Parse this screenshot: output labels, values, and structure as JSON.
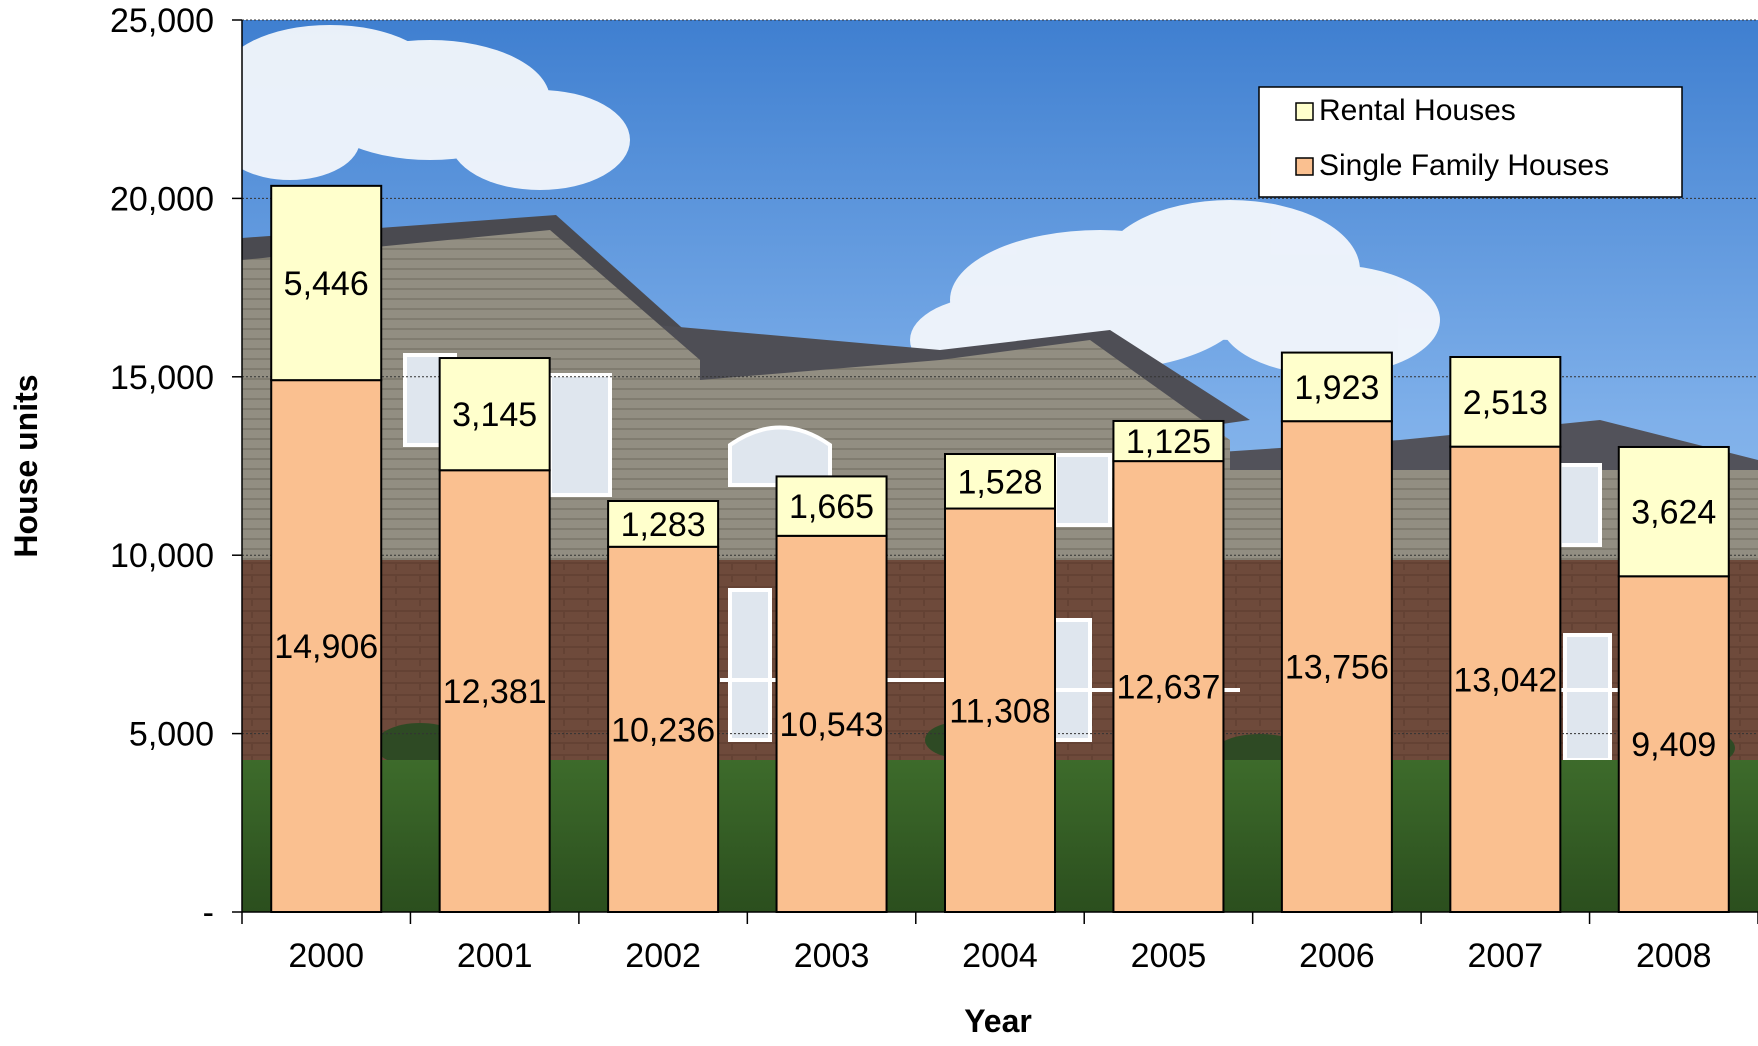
{
  "chart_data": {
    "type": "bar",
    "stacked": true,
    "categories": [
      "2000",
      "2001",
      "2002",
      "2003",
      "2004",
      "2005",
      "2006",
      "2007",
      "2008"
    ],
    "series": [
      {
        "name": "Single Family Houses",
        "values": [
          14906,
          12381,
          10236,
          10543,
          11308,
          12637,
          13756,
          13042,
          9409
        ],
        "color": "#FAC090"
      },
      {
        "name": "Rental Houses",
        "values": [
          5446,
          3145,
          1283,
          1665,
          1528,
          1125,
          1923,
          2513,
          3624
        ],
        "color": "#FFFFCC"
      }
    ],
    "value_labels": {
      "Single Family Houses": [
        "14,906",
        "12,381",
        "10,236",
        "10,543",
        "11,308",
        "12,637",
        "13,756",
        "13,042",
        "9,409"
      ],
      "Rental Houses": [
        "5,446",
        "3,145",
        "1,283",
        "1,665",
        "1,528",
        "1,125",
        "1,923",
        "2,513",
        "3,624"
      ]
    },
    "xlabel": "Year",
    "ylabel": "House units",
    "ylim": [
      0,
      25000
    ],
    "yticks": [
      0,
      5000,
      10000,
      15000,
      20000,
      25000
    ],
    "ytick_labels": [
      "-",
      "5,000",
      "10,000",
      "15,000",
      "20,000",
      "25,000"
    ],
    "grid": true,
    "legend_position": "top-right",
    "legend": [
      "Rental Houses",
      "Single Family Houses"
    ],
    "background": "photo of a two-story house with blue sky and clouds"
  }
}
